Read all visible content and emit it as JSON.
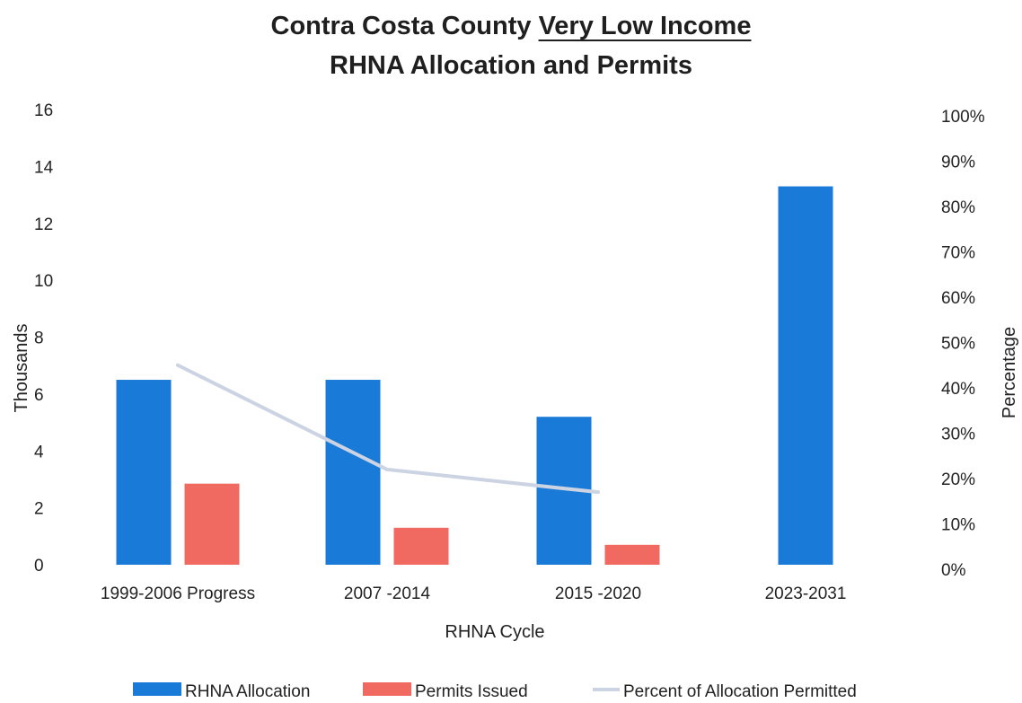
{
  "chart_data": {
    "type": "bar",
    "title_part1": "Contra Costa County ",
    "title_underlined": "Very Low Income",
    "title_line2": "RHNA Allocation and Permits",
    "xlabel": "RHNA Cycle",
    "ylabel": "Thousands",
    "y2label": "Percentage",
    "categories": [
      "1999-2006 Progress",
      "2007 -2014",
      "2015 -2020",
      "2023-2031"
    ],
    "ylim": [
      0,
      16
    ],
    "yticks": [
      "0",
      "2",
      "4",
      "6",
      "8",
      "10",
      "12",
      "14",
      "16"
    ],
    "y2lim": [
      0,
      100
    ],
    "y2ticks": [
      "0%",
      "10%",
      "20%",
      "30%",
      "40%",
      "50%",
      "60%",
      "70%",
      "80%",
      "90%",
      "100%"
    ],
    "grid": false,
    "legend_position": "bottom",
    "series": [
      {
        "name": "RHNA Allocation",
        "type": "bar",
        "axis": "left",
        "color": "#1a7ad8",
        "values": [
          6.5,
          6.5,
          5.2,
          13.3
        ]
      },
      {
        "name": "Permits Issued",
        "type": "bar",
        "axis": "left",
        "color": "#f06a62",
        "values": [
          2.85,
          1.3,
          0.7,
          null
        ]
      },
      {
        "name": "Percent of Allocation Permitted",
        "type": "line",
        "axis": "right",
        "color": "#ccd3e2",
        "values": [
          45,
          22,
          17,
          null
        ]
      }
    ]
  }
}
